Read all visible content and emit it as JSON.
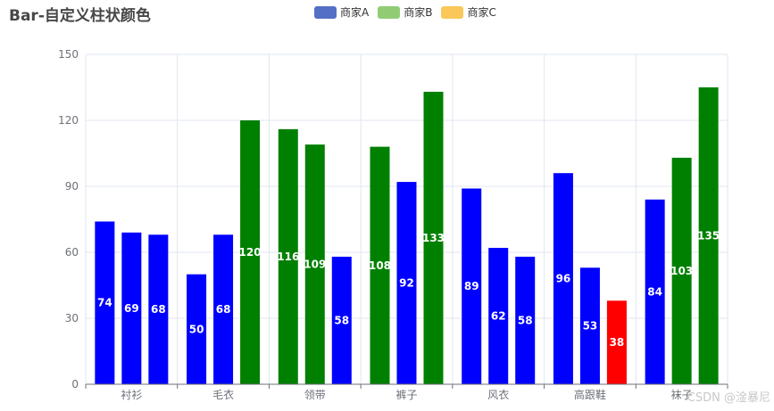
{
  "chart_data": {
    "type": "bar",
    "title": "Bar-自定义柱状颜色",
    "categories": [
      "衬衫",
      "毛衣",
      "领带",
      "裤子",
      "风衣",
      "高跟鞋",
      "袜子"
    ],
    "series": [
      {
        "name": "商家A",
        "legend_color": "#5470c6",
        "values": [
          74,
          50,
          116,
          108,
          89,
          96,
          84
        ]
      },
      {
        "name": "商家B",
        "legend_color": "#91cc75",
        "values": [
          69,
          68,
          109,
          92,
          62,
          53,
          103
        ]
      },
      {
        "name": "商家C",
        "legend_color": "#fac858",
        "values": [
          68,
          120,
          58,
          133,
          58,
          38,
          135
        ]
      }
    ],
    "ylim": [
      0,
      150
    ],
    "yticks": [
      0,
      30,
      60,
      90,
      120,
      150
    ],
    "grid": true,
    "legend_position": "top-center",
    "color_rule": {
      "above_100": "#008000",
      "50_to_100": "#0000ff",
      "below_50": "#ff0000"
    }
  },
  "watermark": "CSDN @淦暴尼"
}
